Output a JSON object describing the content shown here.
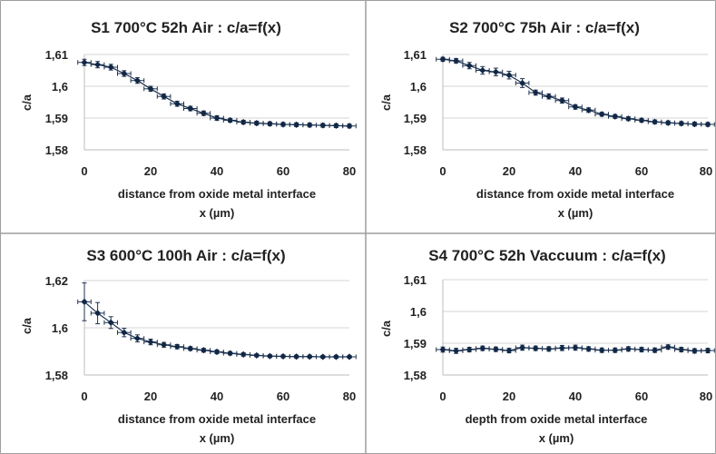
{
  "chart_data": [
    {
      "type": "scatter",
      "title": "S1 700°C 52h Air : c/a=f(x)",
      "xlabel": [
        "distance from oxide metal interface",
        "x (µm)"
      ],
      "ylabel": "c/a",
      "xlim": [
        0,
        80
      ],
      "ylim": [
        1.58,
        1.61
      ],
      "xticks": [
        0,
        20,
        40,
        60,
        80
      ],
      "yticks": [
        1.58,
        1.59,
        1.6,
        1.61
      ],
      "ytick_labels": [
        "1,58",
        "1,59",
        "1,6",
        "1,61"
      ],
      "grid": true,
      "series": [
        {
          "x": [
            0,
            4,
            8,
            12,
            16,
            20,
            24,
            28,
            32,
            36,
            40,
            44,
            48,
            52,
            56,
            60,
            64,
            68,
            72,
            76,
            80
          ],
          "y": [
            1.6075,
            1.6068,
            1.606,
            1.604,
            1.6018,
            1.5992,
            1.5968,
            1.5945,
            1.593,
            1.5915,
            1.59,
            1.5893,
            1.5887,
            1.5884,
            1.5882,
            1.588,
            1.5879,
            1.5878,
            1.5877,
            1.5876,
            1.5875
          ],
          "yerr": [
            0.001,
            0.001,
            0.0009,
            0.0009,
            0.0009,
            0.0008,
            0.0008,
            0.0008,
            0.0007,
            0.0007,
            0.0007,
            0.0006,
            0.0006,
            0.0006,
            0.0006,
            0.0006,
            0.0006,
            0.0006,
            0.0006,
            0.0006,
            0.0006
          ],
          "xerr": 2
        }
      ]
    },
    {
      "type": "scatter",
      "title": "S2 700°C 75h Air : c/a=f(x)",
      "xlabel": [
        "distance from oxide metal interface",
        "x (µm)"
      ],
      "ylabel": "c/a",
      "xlim": [
        0,
        80
      ],
      "ylim": [
        1.58,
        1.61
      ],
      "xticks": [
        0,
        20,
        40,
        60,
        80
      ],
      "yticks": [
        1.58,
        1.59,
        1.6,
        1.61
      ],
      "ytick_labels": [
        "1,58",
        "1,59",
        "1,6",
        "1,61"
      ],
      "grid": true,
      "series": [
        {
          "x": [
            0,
            4,
            8,
            12,
            16,
            20,
            24,
            28,
            32,
            36,
            40,
            44,
            48,
            52,
            56,
            60,
            64,
            68,
            72,
            76,
            80
          ],
          "y": [
            1.6085,
            1.608,
            1.6065,
            1.605,
            1.6045,
            1.6035,
            1.601,
            1.598,
            1.5968,
            1.5955,
            1.5935,
            1.5925,
            1.5912,
            1.5905,
            1.5898,
            1.5893,
            1.5888,
            1.5885,
            1.5883,
            1.5881,
            1.588
          ],
          "yerr": [
            0.0006,
            0.0007,
            0.001,
            0.0012,
            0.0012,
            0.0012,
            0.0014,
            0.0008,
            0.0008,
            0.0008,
            0.0007,
            0.0007,
            0.0006,
            0.0006,
            0.0006,
            0.0006,
            0.0006,
            0.0006,
            0.0006,
            0.0006,
            0.0006
          ],
          "xerr": 2
        }
      ]
    },
    {
      "type": "scatter",
      "title": "S3 600°C 100h Air : c/a=f(x)",
      "xlabel": [
        "distance from oxide metal interface",
        "x (µm)"
      ],
      "ylabel": "c/a",
      "xlim": [
        0,
        80
      ],
      "ylim": [
        1.58,
        1.62
      ],
      "xticks": [
        0,
        20,
        40,
        60,
        80
      ],
      "yticks": [
        1.58,
        1.6,
        1.62
      ],
      "ytick_labels": [
        "1,58",
        "1,6",
        "1,62"
      ],
      "grid": true,
      "series": [
        {
          "x": [
            0,
            4,
            8,
            12,
            16,
            20,
            24,
            28,
            32,
            36,
            40,
            44,
            48,
            52,
            56,
            60,
            64,
            68,
            72,
            76,
            80
          ],
          "y": [
            1.611,
            1.6062,
            1.6022,
            1.598,
            1.5955,
            1.594,
            1.5928,
            1.592,
            1.5912,
            1.5905,
            1.5898,
            1.5892,
            1.5887,
            1.5883,
            1.588,
            1.5879,
            1.5878,
            1.5878,
            1.5877,
            1.5877,
            1.5877
          ],
          "yerr": [
            0.008,
            0.0045,
            0.0025,
            0.0018,
            0.0015,
            0.0012,
            0.001,
            0.0009,
            0.0008,
            0.0008,
            0.0008,
            0.0007,
            0.0007,
            0.0006,
            0.0006,
            0.0006,
            0.0006,
            0.0006,
            0.0006,
            0.0006,
            0.0006
          ],
          "xerr": 2
        }
      ]
    },
    {
      "type": "scatter",
      "title": "S4 700°C 52h Vaccuum : c/a=f(x)",
      "xlabel": [
        "depth from oxide metal interface",
        "x (µm)"
      ],
      "ylabel": "c/a",
      "xlim": [
        0,
        80
      ],
      "ylim": [
        1.58,
        1.61
      ],
      "xticks": [
        0,
        20,
        40,
        60,
        80
      ],
      "yticks": [
        1.58,
        1.59,
        1.6,
        1.61
      ],
      "ytick_labels": [
        "1,58",
        "1,59",
        "1,6",
        "1,61"
      ],
      "grid": true,
      "series": [
        {
          "x": [
            0,
            4,
            8,
            12,
            16,
            20,
            24,
            28,
            32,
            36,
            40,
            44,
            48,
            52,
            56,
            60,
            64,
            68,
            72,
            76,
            80
          ],
          "y": [
            1.588,
            1.5876,
            1.588,
            1.5884,
            1.5881,
            1.5877,
            1.5886,
            1.5884,
            1.5882,
            1.5885,
            1.5886,
            1.5882,
            1.5878,
            1.5878,
            1.5882,
            1.588,
            1.5878,
            1.5888,
            1.588,
            1.5876,
            1.5877
          ],
          "yerr": [
            0.0008,
            0.0008,
            0.0007,
            0.0007,
            0.0007,
            0.0007,
            0.0008,
            0.0007,
            0.0007,
            0.0008,
            0.0008,
            0.0007,
            0.0007,
            0.0007,
            0.0007,
            0.0007,
            0.0007,
            0.0007,
            0.0007,
            0.0007,
            0.0007
          ],
          "xerr": 2
        }
      ]
    }
  ]
}
